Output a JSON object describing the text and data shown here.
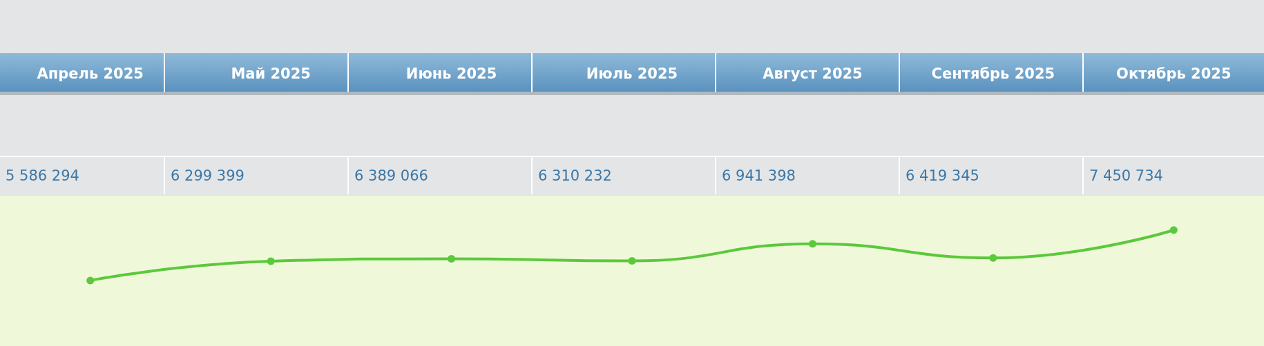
{
  "chart_data": {
    "type": "line",
    "categories": [
      "Апрель 2025",
      "Май 2025",
      "Июнь 2025",
      "Июль 2025",
      "Август 2025",
      "Сентябрь 2025",
      "Октябрь 2025"
    ],
    "values": [
      5586294,
      6299399,
      6389066,
      6310232,
      6941398,
      6419345,
      7450734
    ],
    "color": "#5cc83c",
    "marker": "circle",
    "data_labels": true
  }
}
